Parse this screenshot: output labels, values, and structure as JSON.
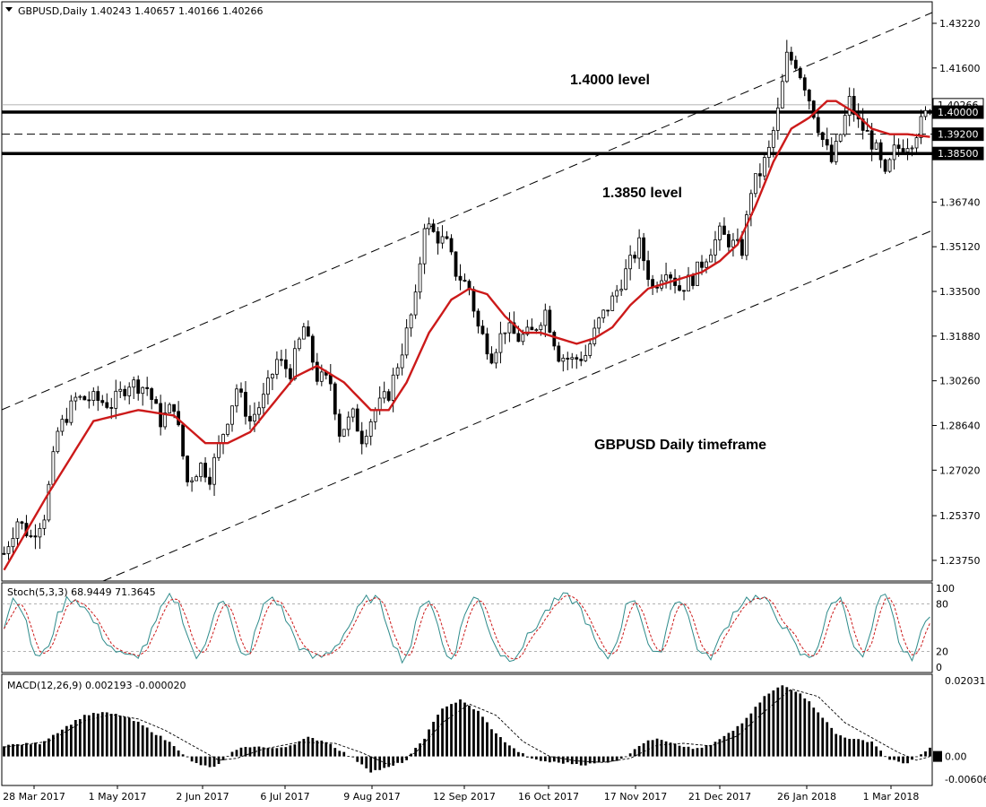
{
  "chart_data": {
    "type": "candlestick",
    "symbol_header": "GBPUSD,Daily",
    "ohlc_header": "1.40243 1.40657 1.40166 1.40266",
    "price_axis": {
      "ticks": [
        "1.43220",
        "1.41600",
        "1.39200",
        "1.38500",
        "1.36740",
        "1.35120",
        "1.33500",
        "1.31880",
        "1.30260",
        "1.28640",
        "1.27020",
        "1.25370",
        "1.23750"
      ],
      "ylim": [
        1.23,
        1.44
      ],
      "current_price_label": "1.40266",
      "current_price": 1.40266
    },
    "levels": [
      {
        "price": 1.4,
        "label": "1.40000",
        "style": "thick-solid"
      },
      {
        "price": 1.392,
        "label": "1.39200",
        "style": "dashed"
      },
      {
        "price": 1.385,
        "label": "1.38500",
        "style": "thick-solid"
      }
    ],
    "annotations": [
      {
        "text": "1.4000 level"
      },
      {
        "text": "1.3850 level"
      },
      {
        "text": "GBPUSD Daily timeframe"
      }
    ],
    "x_axis": {
      "labels": [
        "28 Mar 2017",
        "1 May 2017",
        "2 Jun 2017",
        "6 Jul 2017",
        "9 Aug 2017",
        "12 Sep 2017",
        "16 Oct 2017",
        "17 Nov 2017",
        "21 Dec 2017",
        "26 Jan 2018",
        "1 Mar 2018"
      ]
    },
    "moving_average_color": "#cc1a1a",
    "price_anchors": [
      [
        0,
        1.24
      ],
      [
        3,
        1.252
      ],
      [
        6,
        1.246
      ],
      [
        9,
        1.254
      ],
      [
        12,
        1.284
      ],
      [
        16,
        1.296
      ],
      [
        20,
        1.296
      ],
      [
        24,
        1.294
      ],
      [
        28,
        1.302
      ],
      [
        32,
        1.3
      ],
      [
        35,
        1.288
      ],
      [
        38,
        1.294
      ],
      [
        41,
        1.266
      ],
      [
        44,
        1.272
      ],
      [
        46,
        1.268
      ],
      [
        49,
        1.284
      ],
      [
        52,
        1.3
      ],
      [
        55,
        1.288
      ],
      [
        58,
        1.296
      ],
      [
        61,
        1.31
      ],
      [
        64,
        1.306
      ],
      [
        67,
        1.322
      ],
      [
        70,
        1.304
      ],
      [
        73,
        1.302
      ],
      [
        75,
        1.284
      ],
      [
        78,
        1.29
      ],
      [
        80,
        1.282
      ],
      [
        83,
        1.292
      ],
      [
        86,
        1.298
      ],
      [
        89,
        1.314
      ],
      [
        92,
        1.332
      ],
      [
        94,
        1.36
      ],
      [
        96,
        1.356
      ],
      [
        99,
        1.352
      ],
      [
        101,
        1.342
      ],
      [
        104,
        1.336
      ],
      [
        106,
        1.322
      ],
      [
        109,
        1.312
      ],
      [
        112,
        1.322
      ],
      [
        115,
        1.318
      ],
      [
        118,
        1.32
      ],
      [
        121,
        1.328
      ],
      [
        124,
        1.312
      ],
      [
        127,
        1.31
      ],
      [
        130,
        1.312
      ],
      [
        133,
        1.324
      ],
      [
        136,
        1.332
      ],
      [
        139,
        1.342
      ],
      [
        142,
        1.352
      ],
      [
        145,
        1.336
      ],
      [
        148,
        1.344
      ],
      [
        151,
        1.336
      ],
      [
        154,
        1.34
      ],
      [
        157,
        1.348
      ],
      [
        160,
        1.356
      ],
      [
        163,
        1.352
      ],
      [
        165,
        1.35
      ],
      [
        167,
        1.372
      ],
      [
        169,
        1.378
      ],
      [
        171,
        1.386
      ],
      [
        173,
        1.4
      ],
      [
        175,
        1.42
      ],
      [
        177,
        1.418
      ],
      [
        179,
        1.41
      ],
      [
        181,
        1.4
      ],
      [
        183,
        1.39
      ],
      [
        185,
        1.382
      ],
      [
        187,
        1.392
      ],
      [
        189,
        1.404
      ],
      [
        191,
        1.396
      ],
      [
        193,
        1.392
      ],
      [
        195,
        1.386
      ],
      [
        197,
        1.376
      ],
      [
        199,
        1.386
      ],
      [
        201,
        1.388
      ],
      [
        203,
        1.39
      ],
      [
        205,
        1.396
      ],
      [
        207,
        1.402
      ]
    ],
    "ma_anchors": [
      [
        0,
        1.234
      ],
      [
        10,
        1.262
      ],
      [
        20,
        1.288
      ],
      [
        30,
        1.292
      ],
      [
        38,
        1.29
      ],
      [
        45,
        1.28
      ],
      [
        50,
        1.28
      ],
      [
        55,
        1.284
      ],
      [
        60,
        1.294
      ],
      [
        65,
        1.304
      ],
      [
        70,
        1.308
      ],
      [
        76,
        1.302
      ],
      [
        82,
        1.292
      ],
      [
        86,
        1.292
      ],
      [
        90,
        1.302
      ],
      [
        95,
        1.32
      ],
      [
        100,
        1.332
      ],
      [
        104,
        1.336
      ],
      [
        108,
        1.334
      ],
      [
        112,
        1.326
      ],
      [
        116,
        1.32
      ],
      [
        120,
        1.32
      ],
      [
        124,
        1.318
      ],
      [
        128,
        1.316
      ],
      [
        132,
        1.318
      ],
      [
        136,
        1.322
      ],
      [
        140,
        1.33
      ],
      [
        144,
        1.336
      ],
      [
        148,
        1.338
      ],
      [
        152,
        1.34
      ],
      [
        156,
        1.342
      ],
      [
        160,
        1.346
      ],
      [
        164,
        1.352
      ],
      [
        168,
        1.366
      ],
      [
        172,
        1.382
      ],
      [
        176,
        1.394
      ],
      [
        180,
        1.398
      ],
      [
        184,
        1.404
      ],
      [
        186,
        1.404
      ],
      [
        190,
        1.4
      ],
      [
        194,
        1.394
      ],
      [
        198,
        1.392
      ],
      [
        202,
        1.392
      ],
      [
        207,
        1.391
      ]
    ],
    "channel_note": "",
    "stochastic": {
      "title": "Stoch(5,3,3) 68.9449 71.3645",
      "ticks": [
        "100",
        "80",
        "20",
        "0"
      ],
      "ylim": [
        0,
        100
      ],
      "levels": [
        80,
        20
      ],
      "main_color": "#2e8b8b",
      "signal_color": "#cc1a1a"
    },
    "macd": {
      "title": "MACD(12,26,9) 0.002193 -0.000020",
      "ticks": [
        "0.020318",
        "0.00",
        "-0.006064"
      ],
      "ylim": [
        -0.0068,
        0.0205
      ],
      "hist_anchors": [
        [
          0,
          0.003
        ],
        [
          8,
          0.0035
        ],
        [
          14,
          0.008
        ],
        [
          18,
          0.011
        ],
        [
          22,
          0.0117
        ],
        [
          26,
          0.011
        ],
        [
          30,
          0.009
        ],
        [
          34,
          0.006
        ],
        [
          38,
          0.003
        ],
        [
          42,
          -0.0015
        ],
        [
          46,
          -0.003
        ],
        [
          48,
          -0.0022
        ],
        [
          52,
          0.002
        ],
        [
          56,
          0.0028
        ],
        [
          60,
          0.002
        ],
        [
          64,
          0.003
        ],
        [
          68,
          0.005
        ],
        [
          72,
          0.004
        ],
        [
          76,
          0.001
        ],
        [
          80,
          -0.002
        ],
        [
          82,
          -0.004
        ],
        [
          86,
          -0.003
        ],
        [
          90,
          -0.001
        ],
        [
          94,
          0.005
        ],
        [
          98,
          0.013
        ],
        [
          102,
          0.015
        ],
        [
          106,
          0.012
        ],
        [
          110,
          0.006
        ],
        [
          114,
          0.002
        ],
        [
          118,
          -0.0008
        ],
        [
          122,
          -0.0015
        ],
        [
          126,
          -0.0018
        ],
        [
          130,
          -0.0022
        ],
        [
          134,
          -0.0016
        ],
        [
          138,
          -0.0008
        ],
        [
          142,
          0.003
        ],
        [
          146,
          0.005
        ],
        [
          150,
          0.0035
        ],
        [
          154,
          0.002
        ],
        [
          158,
          0.003
        ],
        [
          162,
          0.006
        ],
        [
          166,
          0.01
        ],
        [
          170,
          0.016
        ],
        [
          174,
          0.019
        ],
        [
          178,
          0.017
        ],
        [
          182,
          0.012
        ],
        [
          186,
          0.006
        ],
        [
          190,
          0.0045
        ],
        [
          194,
          0.004
        ],
        [
          198,
          -0.001
        ],
        [
          202,
          -0.0018
        ],
        [
          205,
          0.0005
        ],
        [
          207,
          0.0022
        ]
      ],
      "signal_anchors": [
        [
          0,
          0.0025
        ],
        [
          10,
          0.004
        ],
        [
          18,
          0.0095
        ],
        [
          24,
          0.0112
        ],
        [
          30,
          0.01
        ],
        [
          36,
          0.007
        ],
        [
          42,
          0.003
        ],
        [
          48,
          -0.001
        ],
        [
          52,
          -0.0005
        ],
        [
          58,
          0.002
        ],
        [
          66,
          0.0038
        ],
        [
          74,
          0.0035
        ],
        [
          80,
          0.001
        ],
        [
          86,
          -0.0022
        ],
        [
          92,
          0.001
        ],
        [
          98,
          0.009
        ],
        [
          104,
          0.014
        ],
        [
          110,
          0.011
        ],
        [
          116,
          0.004
        ],
        [
          122,
          0.0
        ],
        [
          128,
          -0.0012
        ],
        [
          134,
          -0.0016
        ],
        [
          140,
          -0.0005
        ],
        [
          146,
          0.003
        ],
        [
          152,
          0.0035
        ],
        [
          158,
          0.0028
        ],
        [
          164,
          0.0055
        ],
        [
          170,
          0.012
        ],
        [
          176,
          0.018
        ],
        [
          182,
          0.016
        ],
        [
          188,
          0.009
        ],
        [
          194,
          0.005
        ],
        [
          200,
          0.001
        ],
        [
          204,
          -0.001
        ],
        [
          207,
          -2e-05
        ]
      ]
    }
  }
}
